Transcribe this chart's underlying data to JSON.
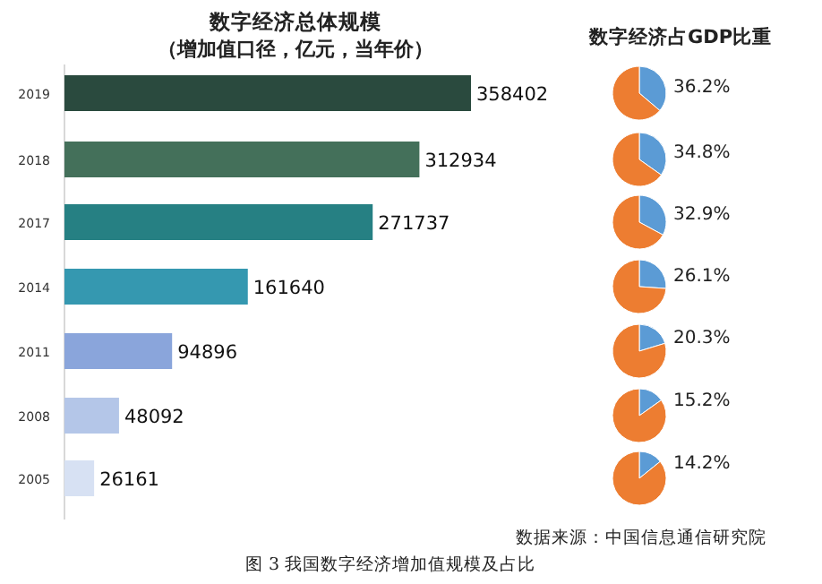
{
  "chart_data": [
    {
      "type": "bar",
      "orientation": "horizontal",
      "title": "数字经济总体规模",
      "subtitle": "（增加值口径，亿元，当年价）",
      "categories": [
        "2019",
        "2018",
        "2017",
        "2014",
        "2011",
        "2008",
        "2005"
      ],
      "values": [
        358402,
        312934,
        271737,
        161640,
        94896,
        48092,
        26161
      ],
      "colors": [
        "#2a4a3e",
        "#44705a",
        "#268083",
        "#3598b0",
        "#8aa5db",
        "#b4c6e8",
        "#d7e1f3"
      ],
      "data_labels": true,
      "annotations": [
        "数据来源：中国信息通信研究院",
        "图 3 我国数字经济增加值规模及占比"
      ]
    },
    {
      "type": "pie",
      "title": "数字经济占GDP比重",
      "categories": [
        null,
        null
      ],
      "values": [
        36.2,
        63.8
      ],
      "colors": [
        "#5b9bd5",
        "#ed7d31"
      ],
      "value_labels": [
        "36.2%",
        null
      ]
    },
    {
      "type": "pie",
      "categories": [
        null,
        null
      ],
      "values": [
        34.8,
        65.2
      ],
      "colors": [
        "#5b9bd5",
        "#ed7d31"
      ],
      "value_labels": [
        "34.8%",
        null
      ]
    },
    {
      "type": "pie",
      "categories": [
        null,
        null
      ],
      "values": [
        32.9,
        67.1
      ],
      "colors": [
        "#5b9bd5",
        "#ed7d31"
      ],
      "value_labels": [
        "32.9%",
        null
      ]
    },
    {
      "type": "pie",
      "categories": [
        null,
        null
      ],
      "values": [
        26.1,
        73.9
      ],
      "colors": [
        "#5b9bd5",
        "#ed7d31"
      ],
      "value_labels": [
        "26.1%",
        null
      ]
    },
    {
      "type": "pie",
      "categories": [
        null,
        null
      ],
      "values": [
        20.3,
        79.7
      ],
      "colors": [
        "#5b9bd5",
        "#ed7d31"
      ],
      "value_labels": [
        "20.3%",
        null
      ]
    },
    {
      "type": "pie",
      "categories": [
        null,
        null
      ],
      "values": [
        15.2,
        84.8
      ],
      "colors": [
        "#5b9bd5",
        "#ed7d31"
      ],
      "value_labels": [
        "15.2%",
        null
      ]
    },
    {
      "type": "pie",
      "categories": [
        null,
        null
      ],
      "values": [
        14.2,
        85.8
      ],
      "colors": [
        "#5b9bd5",
        "#ed7d31"
      ],
      "value_labels": [
        "14.2%",
        null
      ]
    }
  ]
}
